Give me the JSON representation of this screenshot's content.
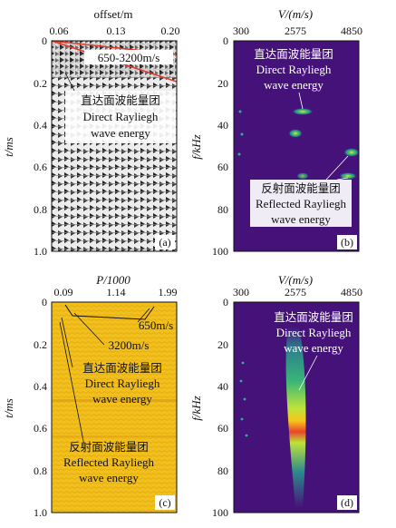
{
  "panels": {
    "a": {
      "label": "(a)",
      "x_title": "offset/m",
      "x_ticks": [
        "0.06",
        "0.13",
        "0.20"
      ],
      "y_title": "t/ms",
      "y_ticks": [
        "0",
        "0.2",
        "0.4",
        "0.6",
        "0.8",
        "1.0"
      ],
      "velocity": "650-3200m/s",
      "anno_cn": "直达面波能量团",
      "anno_en1": "Direct Rayliegh",
      "anno_en2": "wave energy"
    },
    "b": {
      "label": "(b)",
      "x_title": "V/(m/s)",
      "x_ticks": [
        "300",
        "2575",
        "4850"
      ],
      "y_title": "f/kHz",
      "y_ticks": [
        "0",
        "20",
        "40",
        "60",
        "80",
        "100"
      ],
      "direct_cn": "直达面波能量团",
      "direct_en1": "Direct Rayliegh",
      "direct_en2": "wave energy",
      "refl_cn": "反射面波能量团",
      "refl_en1": "Reflected Rayliegh",
      "refl_en2": "wave energy"
    },
    "c": {
      "label": "(c)",
      "x_title": "P/1000",
      "x_ticks": [
        "0.09",
        "1.14",
        "1.99"
      ],
      "y_title": "t/ms",
      "y_ticks": [
        "0",
        "0.2",
        "0.4",
        "0.6",
        "0.8",
        "1.0"
      ],
      "vel1": "650m/s",
      "vel2": "3200m/s",
      "direct_cn": "直达面波能量团",
      "direct_en1": "Direct Rayliegh",
      "direct_en2": "wave energy",
      "refl_cn": "反射面波能量团",
      "refl_en1": "Reflected Rayliegh",
      "refl_en2": "wave energy"
    },
    "d": {
      "label": "(d)",
      "x_title": "V/(m/s)",
      "x_ticks": [
        "300",
        "2575",
        "4850"
      ],
      "y_title": "f/kHz",
      "y_ticks": [
        "0",
        "20",
        "40",
        "60",
        "80",
        "100"
      ],
      "direct_cn": "直达面波能量团",
      "direct_en1": "Direct Rayliegh",
      "direct_en2": "wave energy"
    }
  },
  "colors": {
    "seismic_bg": "#ebebeb",
    "spectrum_bg": "#45127a",
    "tau_p_bg": "#f4c21e",
    "red_line": "#e23a2a"
  }
}
